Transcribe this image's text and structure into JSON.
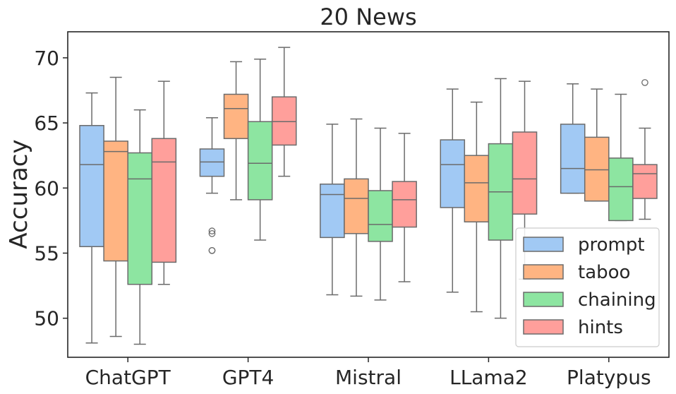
{
  "chart_data": {
    "type": "boxplot",
    "title": "20 News",
    "xlabel": "",
    "ylabel": "Accuracy",
    "ylim": [
      47,
      72
    ],
    "yticks": [
      50,
      55,
      60,
      65,
      70
    ],
    "grid": false,
    "legend_position": "lower-right",
    "categories": [
      "ChatGPT",
      "GPT4",
      "Mistral",
      "LLama2",
      "Platypus"
    ],
    "series": [
      {
        "name": "prompt",
        "color": "#a1c9f4",
        "boxes": [
          {
            "min": 48.1,
            "q1": 55.5,
            "median": 61.8,
            "q3": 64.8,
            "max": 67.3,
            "outliers": []
          },
          {
            "min": 59.6,
            "q1": 60.9,
            "median": 62.0,
            "q3": 63.0,
            "max": 65.4,
            "outliers": [
              56.5,
              56.7,
              55.2,
              55.2
            ]
          },
          {
            "min": 51.8,
            "q1": 56.2,
            "median": 59.5,
            "q3": 60.3,
            "max": 64.9,
            "outliers": []
          },
          {
            "min": 52.0,
            "q1": 58.5,
            "median": 61.8,
            "q3": 63.7,
            "max": 67.6,
            "outliers": []
          },
          {
            "min": 59.6,
            "q1": 59.6,
            "median": 61.5,
            "q3": 64.9,
            "max": 68.0,
            "outliers": []
          }
        ]
      },
      {
        "name": "taboo",
        "color": "#ffb482",
        "boxes": [
          {
            "min": 48.6,
            "q1": 54.4,
            "median": 62.8,
            "q3": 63.6,
            "max": 68.5,
            "outliers": []
          },
          {
            "min": 59.1,
            "q1": 63.8,
            "median": 66.1,
            "q3": 67.2,
            "max": 69.7,
            "outliers": []
          },
          {
            "min": 51.7,
            "q1": 56.5,
            "median": 59.2,
            "q3": 60.7,
            "max": 65.3,
            "outliers": []
          },
          {
            "min": 50.5,
            "q1": 57.4,
            "median": 60.4,
            "q3": 62.5,
            "max": 66.6,
            "outliers": []
          },
          {
            "min": 59.0,
            "q1": 59.0,
            "median": 61.4,
            "q3": 63.9,
            "max": 67.6,
            "outliers": []
          }
        ]
      },
      {
        "name": "chaining",
        "color": "#8de5a1",
        "boxes": [
          {
            "min": 48.0,
            "q1": 52.6,
            "median": 60.7,
            "q3": 62.7,
            "max": 66.0,
            "outliers": []
          },
          {
            "min": 56.0,
            "q1": 59.1,
            "median": 61.9,
            "q3": 65.1,
            "max": 69.9,
            "outliers": []
          },
          {
            "min": 51.4,
            "q1": 55.9,
            "median": 57.2,
            "q3": 59.8,
            "max": 64.6,
            "outliers": []
          },
          {
            "min": 50.0,
            "q1": 56.0,
            "median": 59.7,
            "q3": 63.4,
            "max": 68.4,
            "outliers": []
          },
          {
            "min": 57.5,
            "q1": 57.5,
            "median": 60.1,
            "q3": 62.3,
            "max": 67.2,
            "outliers": []
          }
        ]
      },
      {
        "name": "hints",
        "color": "#ff9f9b",
        "boxes": [
          {
            "min": 52.6,
            "q1": 54.3,
            "median": 62.0,
            "q3": 63.8,
            "max": 68.2,
            "outliers": []
          },
          {
            "min": 60.9,
            "q1": 63.3,
            "median": 65.1,
            "q3": 67.0,
            "max": 70.8,
            "outliers": []
          },
          {
            "min": 52.8,
            "q1": 57.0,
            "median": 59.1,
            "q3": 60.5,
            "max": 64.2,
            "outliers": []
          },
          {
            "min": 53.0,
            "q1": 58.0,
            "median": 60.7,
            "q3": 64.3,
            "max": 68.2,
            "outliers": []
          },
          {
            "min": 57.6,
            "q1": 59.2,
            "median": 61.1,
            "q3": 61.8,
            "max": 64.6,
            "outliers": [
              68.1
            ]
          }
        ]
      }
    ]
  }
}
